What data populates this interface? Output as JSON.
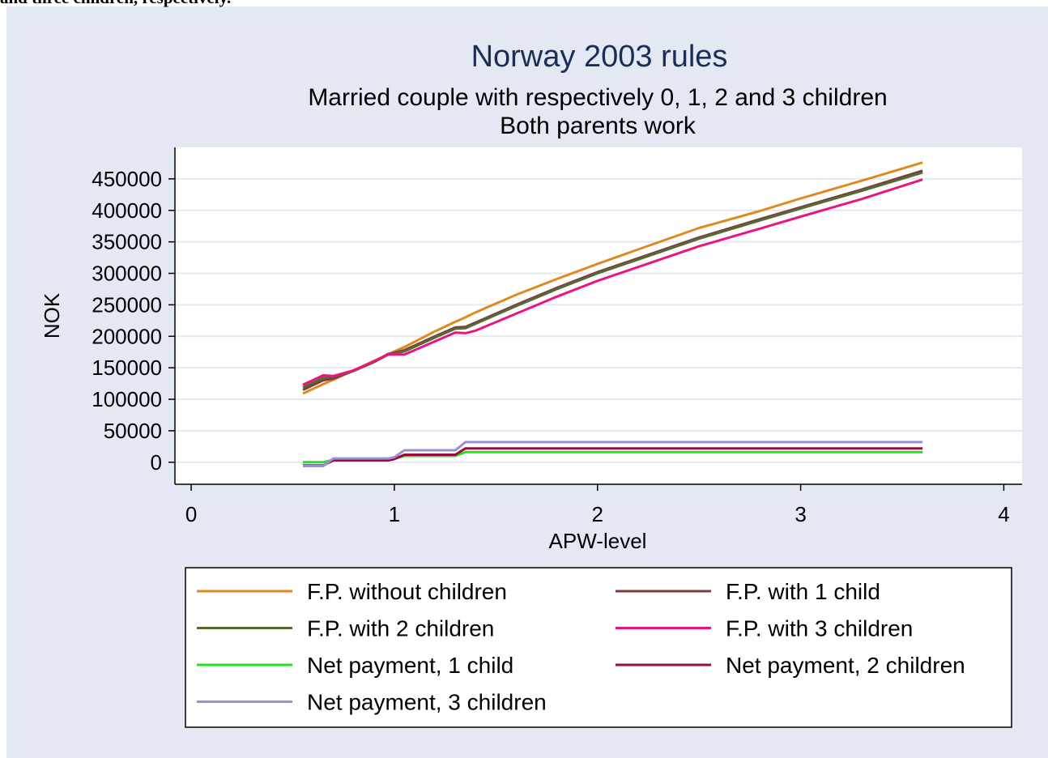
{
  "caption": "and three children, respectively.",
  "chart_data": {
    "type": "line",
    "title": "Norway 2003 rules",
    "subtitle": [
      "Married couple with respectively 0, 1, 2 and 3 children",
      "Both parents work"
    ],
    "x_label": "APW-level",
    "y_label": "NOK",
    "xlim": [
      -0.08,
      4.09
    ],
    "xticks": [
      0,
      1,
      2,
      3,
      4
    ],
    "ylim": [
      -35000,
      500000
    ],
    "yticks": [
      0,
      50000,
      100000,
      150000,
      200000,
      250000,
      300000,
      350000,
      400000,
      450000
    ],
    "grid": true,
    "x": [
      0.55,
      0.65,
      0.7,
      0.8,
      0.9,
      0.97,
      1.0,
      1.05,
      1.2,
      1.3,
      1.35,
      1.4,
      1.6,
      1.8,
      2.0,
      2.2,
      2.5,
      2.8,
      3.0,
      3.3,
      3.6
    ],
    "series": [
      {
        "name": "F.P. without children",
        "color": "#e08a1e",
        "values": [
          109000,
          124000,
          131000,
          146000,
          161000,
          171000,
          176000,
          183000,
          208000,
          223000,
          230000,
          238000,
          266000,
          291000,
          315000,
          338000,
          372000,
          399000,
          419000,
          447000,
          476000
        ]
      },
      {
        "name": "F.P. with 1 child",
        "color": "#7e3b3b",
        "values": [
          115000,
          130000,
          133000,
          145000,
          160000,
          172000,
          174000,
          178000,
          200000,
          214000,
          215000,
          222000,
          250000,
          277000,
          302000,
          324000,
          357000,
          386000,
          405000,
          433000,
          463000
        ]
      },
      {
        "name": "F.P. with 2 children",
        "color": "#566b34",
        "values": [
          119000,
          134000,
          136000,
          145000,
          159000,
          171000,
          173000,
          176000,
          198000,
          212000,
          213000,
          220000,
          248000,
          275000,
          300000,
          322000,
          355000,
          384000,
          403000,
          431000,
          460000
        ]
      },
      {
        "name": "F.P. with 3 children",
        "color": "#ea1680",
        "values": [
          123000,
          138000,
          137000,
          146000,
          160000,
          171000,
          171000,
          171000,
          192000,
          206000,
          205000,
          209000,
          236000,
          263000,
          288000,
          310000,
          343000,
          371000,
          390000,
          418000,
          449000
        ]
      },
      {
        "name": "Net payment, 1 child",
        "color": "#22e022",
        "values": [
          0,
          0,
          4000,
          4000,
          4000,
          4000,
          6000,
          10000,
          10000,
          10000,
          16000,
          16000,
          16000,
          16000,
          16000,
          16000,
          16000,
          16000,
          16000,
          16000,
          16000
        ]
      },
      {
        "name": "Net payment, 2 children",
        "color": "#9b0a3a",
        "values": [
          -5000,
          -5000,
          3000,
          3000,
          3000,
          3000,
          5000,
          12000,
          12000,
          12000,
          22000,
          22000,
          22000,
          22000,
          22000,
          22000,
          22000,
          22000,
          22000,
          22000,
          22000
        ]
      },
      {
        "name": "Net payment, 3 children",
        "color": "#9a8fd6",
        "values": [
          -6000,
          -6000,
          6000,
          6000,
          6000,
          6000,
          8000,
          19000,
          19000,
          19000,
          32000,
          32000,
          32000,
          32000,
          32000,
          32000,
          32000,
          32000,
          32000,
          32000,
          32000
        ]
      }
    ]
  }
}
